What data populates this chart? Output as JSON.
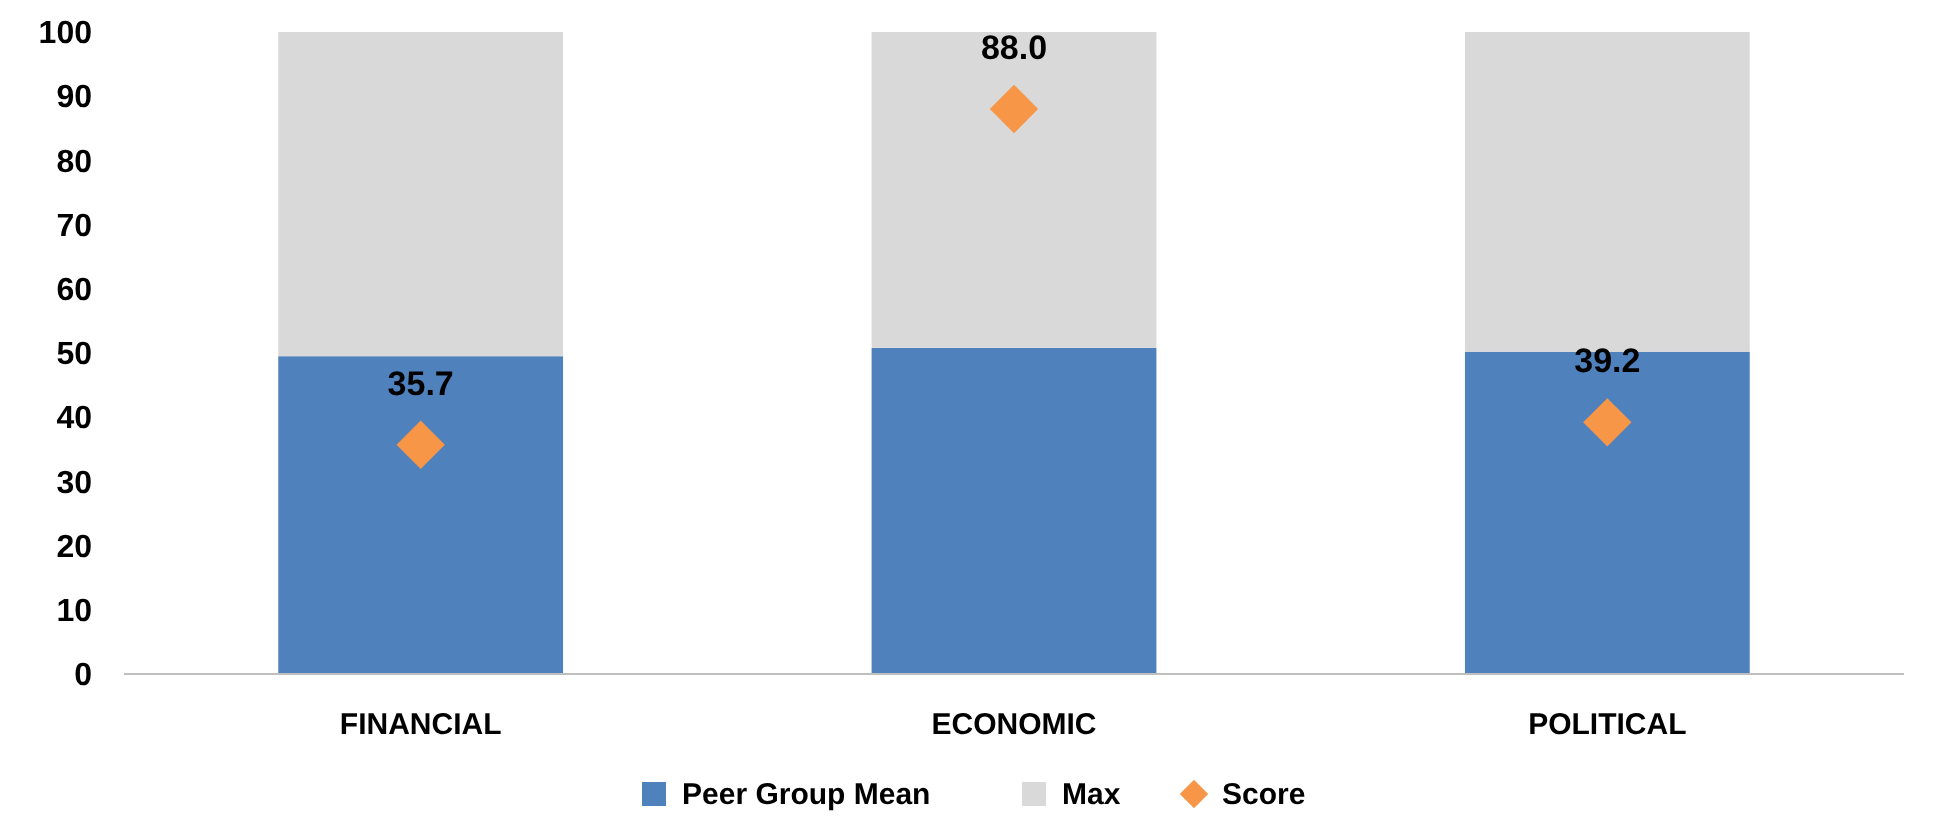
{
  "chart_data": {
    "type": "bar",
    "stacked": true,
    "categories": [
      "FINANCIAL",
      "ECONOMIC",
      "POLITICAL"
    ],
    "ylim": [
      0,
      100
    ],
    "yticks": [
      0,
      10,
      20,
      30,
      40,
      50,
      60,
      70,
      80,
      90,
      100
    ],
    "legend": "bottom",
    "grid": false,
    "series": [
      {
        "name": "Peer Group Mean",
        "color": "#4f81bd",
        "values": [
          49.5,
          50.8,
          50.2
        ]
      },
      {
        "name": "Max",
        "color": "#d9d9d9",
        "values": [
          50.5,
          49.2,
          49.8
        ]
      },
      {
        "name": "Score",
        "type": "scatter",
        "marker": "diamond",
        "color": "#f79646",
        "x": [
          "FINANCIAL",
          "ECONOMIC",
          "POLITICAL"
        ],
        "values": [
          35.7,
          88.0,
          39.2
        ],
        "value_labels": [
          "35.7",
          "88.0",
          "39.2"
        ]
      }
    ]
  }
}
